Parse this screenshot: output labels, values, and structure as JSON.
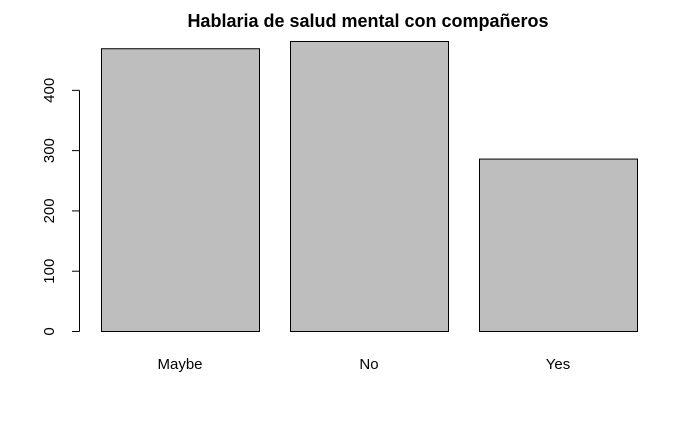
{
  "chart_data": {
    "type": "bar",
    "title": "Hablaria de salud mental con compañeros",
    "categories": [
      "Maybe",
      "No",
      "Yes"
    ],
    "values": [
      469,
      481,
      286
    ],
    "xlabel": "",
    "ylabel": "",
    "ylim": [
      0,
      481
    ],
    "yticks": [
      0,
      100,
      200,
      300,
      400
    ],
    "bar_color": "#bebebe",
    "border_color": "#000000",
    "grid": false
  }
}
